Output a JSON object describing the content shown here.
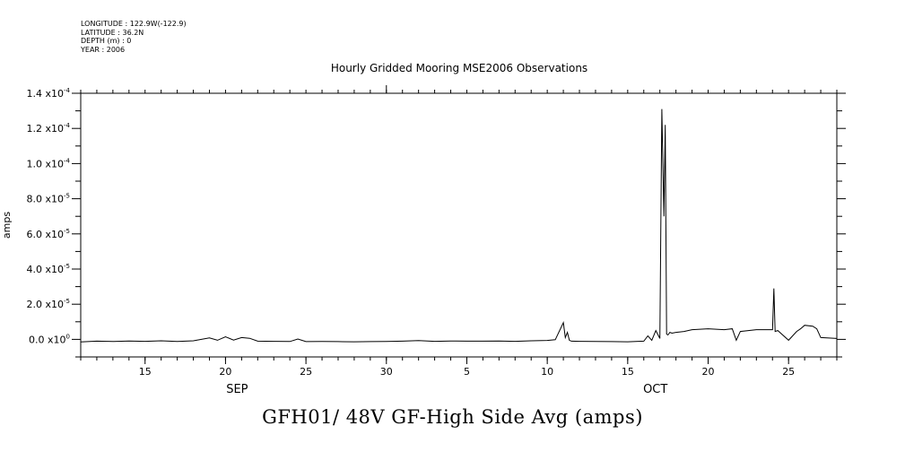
{
  "metadata": {
    "longitude": "LONGITUDE : 122.9W(-122.9)",
    "latitude": "LATITUDE : 36.2N",
    "depth": "DEPTH (m) : 0",
    "year": "YEAR : 2006"
  },
  "caption": "GFH01/ 48V GF-High Side Avg (amps)",
  "chart_data": {
    "type": "line",
    "title": "Hourly Gridded Mooring MSE2006 Observations",
    "ylabel": "amps",
    "xlabel": "",
    "x_range": [
      "2006-09-11",
      "2006-10-28"
    ],
    "ylim": [
      -1e-05,
      0.00014
    ],
    "y_ticks": [
      {
        "value": 0.0,
        "mant": "0.0",
        "exp": "0"
      },
      {
        "value": 2e-05,
        "mant": "2.0",
        "exp": "-5"
      },
      {
        "value": 4e-05,
        "mant": "4.0",
        "exp": "-5"
      },
      {
        "value": 6e-05,
        "mant": "6.0",
        "exp": "-5"
      },
      {
        "value": 8e-05,
        "mant": "8.0",
        "exp": "-5"
      },
      {
        "value": 0.0001,
        "mant": "1.0",
        "exp": "-4"
      },
      {
        "value": 0.00012,
        "mant": "1.2",
        "exp": "-4"
      },
      {
        "value": 0.00014,
        "mant": "1.4",
        "exp": "-4"
      }
    ],
    "x_ticks": [
      {
        "date": "2006-09-15",
        "label": "15"
      },
      {
        "date": "2006-09-20",
        "label": "20"
      },
      {
        "date": "2006-09-25",
        "label": "25"
      },
      {
        "date": "2006-09-30",
        "label": "30"
      },
      {
        "date": "2006-10-05",
        "label": "5"
      },
      {
        "date": "2006-10-10",
        "label": "10"
      },
      {
        "date": "2006-10-15",
        "label": "15"
      },
      {
        "date": "2006-10-20",
        "label": "20"
      },
      {
        "date": "2006-10-25",
        "label": "25"
      }
    ],
    "month_labels": [
      {
        "date": "2006-09-21",
        "label": "SEP"
      },
      {
        "date": "2006-10-17",
        "label": "OCT"
      }
    ],
    "grid": false,
    "series": [
      {
        "x": [
          "2006-09-11",
          "2006-09-12",
          "2006-09-13",
          "2006-09-14",
          "2006-09-15",
          "2006-09-16",
          "2006-09-17",
          "2006-09-18",
          "2006-09-19",
          "2006-09-19 12:00",
          "2006-09-20",
          "2006-09-20 12:00",
          "2006-09-21",
          "2006-09-21 12:00",
          "2006-09-22",
          "2006-09-23",
          "2006-09-24",
          "2006-09-24 12:00",
          "2006-09-25",
          "2006-09-26",
          "2006-09-27",
          "2006-09-28",
          "2006-09-29",
          "2006-09-30",
          "2006-10-01",
          "2006-10-02",
          "2006-10-03",
          "2006-10-04",
          "2006-10-05",
          "2006-10-06",
          "2006-10-07",
          "2006-10-08",
          "2006-10-09",
          "2006-10-10",
          "2006-10-10 12:00",
          "2006-10-11",
          "2006-10-11 03:00",
          "2006-10-11 06:00",
          "2006-10-11 09:00",
          "2006-10-11 12:00",
          "2006-10-12",
          "2006-10-13",
          "2006-10-14",
          "2006-10-15",
          "2006-10-16",
          "2006-10-16 06:00",
          "2006-10-16 12:00",
          "2006-10-16 18:00",
          "2006-10-17",
          "2006-10-17 03:00",
          "2006-10-17 06:00",
          "2006-10-17 08:00",
          "2006-10-17 10:00",
          "2006-10-17 12:00",
          "2006-10-17 15:00",
          "2006-10-17 18:00",
          "2006-10-18",
          "2006-10-18 12:00",
          "2006-10-19",
          "2006-10-20",
          "2006-10-21",
          "2006-10-21 12:00",
          "2006-10-21 18:00",
          "2006-10-22",
          "2006-10-23",
          "2006-10-24",
          "2006-10-24 02:00",
          "2006-10-24 04:00",
          "2006-10-24 08:00",
          "2006-10-25",
          "2006-10-25 12:00",
          "2006-10-25 18:00",
          "2006-10-26",
          "2006-10-26 12:00",
          "2006-10-26 18:00",
          "2006-10-27",
          "2006-10-28"
        ],
        "values": [
          -1.5e-06,
          -1e-06,
          -1.2e-06,
          -9e-07,
          -1.1e-06,
          -8e-07,
          -1.2e-06,
          -8e-07,
          8e-07,
          -5e-07,
          1.5e-06,
          -4e-07,
          1e-06,
          6e-07,
          -1e-06,
          -1.1e-06,
          -1.2e-06,
          2e-07,
          -1.3e-06,
          -1.2e-06,
          -1.3e-06,
          -1.4e-06,
          -1.3e-06,
          -1.2e-06,
          -1e-06,
          -7e-07,
          -1.1e-06,
          -9e-07,
          -1e-06,
          -1e-06,
          -9e-07,
          -1.1e-06,
          -8e-07,
          -6e-07,
          -2e-07,
          9.5e-06,
          1e-06,
          4e-06,
          -5e-07,
          -1e-06,
          -1.1e-06,
          -1.2e-06,
          -1.3e-06,
          -1.4e-06,
          -1e-06,
          2e-06,
          -5e-07,
          5e-06,
          5e-07,
          0.000131,
          7e-05,
          0.000122,
          3e-06,
          2.5e-06,
          4e-06,
          3.5e-06,
          4e-06,
          4.5e-06,
          5.5e-06,
          6e-06,
          5.5e-06,
          6e-06,
          -5e-07,
          4.5e-06,
          5.5e-06,
          5.5e-06,
          2.9e-05,
          4.5e-06,
          5e-06,
          -5e-07,
          4.5e-06,
          6e-06,
          8e-06,
          7.5e-06,
          6e-06,
          1e-06,
          5e-07
        ]
      }
    ]
  }
}
